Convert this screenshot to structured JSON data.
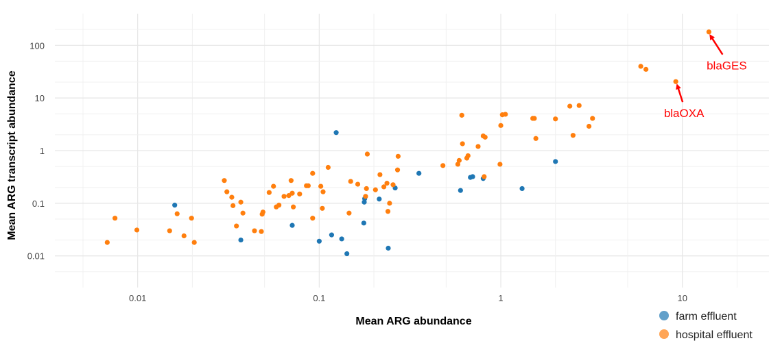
{
  "chart_data": {
    "type": "scatter",
    "xlabel": "Mean ARG abundance",
    "ylabel": "Mean ARG transcript abundance",
    "x_scale": "log",
    "y_scale": "log",
    "xlim": [
      0.0035,
      30
    ],
    "ylim": [
      0.0025,
      400
    ],
    "grid": true,
    "x_ticks": [
      {
        "value": 0.01,
        "label": "0.01"
      },
      {
        "value": 0.1,
        "label": "0.1"
      },
      {
        "value": 1,
        "label": "1"
      },
      {
        "value": 10,
        "label": "10"
      }
    ],
    "y_ticks": [
      {
        "value": 0.01,
        "label": "0.01"
      },
      {
        "value": 0.1,
        "label": "0.1"
      },
      {
        "value": 1,
        "label": "1"
      },
      {
        "value": 10,
        "label": "10"
      },
      {
        "value": 100,
        "label": "100"
      }
    ],
    "legend_position": "bottom-right",
    "series": [
      {
        "name": "farm effluent",
        "color": "#1f77b4",
        "points": [
          [
            0.016,
            0.092
          ],
          [
            0.037,
            0.02
          ],
          [
            0.071,
            0.038
          ],
          [
            0.1,
            0.019
          ],
          [
            0.117,
            0.025
          ],
          [
            0.124,
            2.2
          ],
          [
            0.133,
            0.021
          ],
          [
            0.142,
            0.011
          ],
          [
            0.176,
            0.042
          ],
          [
            0.177,
            0.105
          ],
          [
            0.178,
            0.122
          ],
          [
            0.214,
            0.12
          ],
          [
            0.24,
            0.014
          ],
          [
            0.262,
            0.195
          ],
          [
            0.354,
            0.37
          ],
          [
            0.6,
            0.175
          ],
          [
            0.68,
            0.31
          ],
          [
            0.7,
            0.32
          ],
          [
            0.8,
            0.295
          ],
          [
            1.31,
            0.19
          ],
          [
            2.0,
            0.62
          ]
        ]
      },
      {
        "name": "hospital effluent",
        "color": "#ff7f0e",
        "points": [
          [
            0.0068,
            0.018
          ],
          [
            0.0075,
            0.052
          ],
          [
            0.0099,
            0.031
          ],
          [
            0.015,
            0.03
          ],
          [
            0.0165,
            0.063
          ],
          [
            0.018,
            0.024
          ],
          [
            0.0198,
            0.052
          ],
          [
            0.0205,
            0.018
          ],
          [
            0.03,
            0.27
          ],
          [
            0.031,
            0.165
          ],
          [
            0.033,
            0.13
          ],
          [
            0.0335,
            0.09
          ],
          [
            0.035,
            0.037
          ],
          [
            0.037,
            0.105
          ],
          [
            0.038,
            0.065
          ],
          [
            0.044,
            0.03
          ],
          [
            0.048,
            0.029
          ],
          [
            0.0485,
            0.062
          ],
          [
            0.049,
            0.068
          ],
          [
            0.053,
            0.16
          ],
          [
            0.056,
            0.21
          ],
          [
            0.058,
            0.085
          ],
          [
            0.06,
            0.092
          ],
          [
            0.064,
            0.135
          ],
          [
            0.068,
            0.14
          ],
          [
            0.07,
            0.27
          ],
          [
            0.071,
            0.155
          ],
          [
            0.072,
            0.085
          ],
          [
            0.078,
            0.15
          ],
          [
            0.085,
            0.215
          ],
          [
            0.087,
            0.215
          ],
          [
            0.092,
            0.052
          ],
          [
            0.092,
            0.37
          ],
          [
            0.102,
            0.21
          ],
          [
            0.104,
            0.08
          ],
          [
            0.105,
            0.165
          ],
          [
            0.112,
            0.48
          ],
          [
            0.146,
            0.065
          ],
          [
            0.149,
            0.26
          ],
          [
            0.163,
            0.23
          ],
          [
            0.18,
            0.135
          ],
          [
            0.182,
            0.19
          ],
          [
            0.184,
            0.86
          ],
          [
            0.204,
            0.18
          ],
          [
            0.216,
            0.35
          ],
          [
            0.227,
            0.205
          ],
          [
            0.236,
            0.24
          ],
          [
            0.239,
            0.07
          ],
          [
            0.244,
            0.1
          ],
          [
            0.255,
            0.225
          ],
          [
            0.27,
            0.43
          ],
          [
            0.272,
            0.78
          ],
          [
            0.48,
            0.52
          ],
          [
            0.58,
            0.55
          ],
          [
            0.59,
            0.65
          ],
          [
            0.61,
            4.7
          ],
          [
            0.615,
            1.35
          ],
          [
            0.65,
            0.72
          ],
          [
            0.66,
            0.8
          ],
          [
            0.75,
            1.2
          ],
          [
            0.8,
            1.9
          ],
          [
            0.81,
            0.32
          ],
          [
            0.82,
            1.8
          ],
          [
            0.99,
            0.55
          ],
          [
            1.0,
            3.0
          ],
          [
            1.02,
            4.8
          ],
          [
            1.06,
            4.9
          ],
          [
            1.5,
            4.1
          ],
          [
            1.53,
            4.1
          ],
          [
            1.56,
            1.7
          ],
          [
            2.0,
            4.0
          ],
          [
            2.4,
            7.0
          ],
          [
            2.5,
            1.95
          ],
          [
            2.7,
            7.2
          ],
          [
            3.06,
            2.9
          ],
          [
            3.2,
            4.1
          ],
          [
            5.9,
            40
          ],
          [
            6.3,
            35
          ],
          [
            9.2,
            20.5
          ],
          [
            14,
            180
          ]
        ]
      }
    ],
    "annotations": [
      {
        "text": "blaGES",
        "color": "#ff0000",
        "x": 14,
        "y": 180
      },
      {
        "text": "blaOXA",
        "color": "#ff0000",
        "x": 9.2,
        "y": 20.5
      }
    ]
  }
}
